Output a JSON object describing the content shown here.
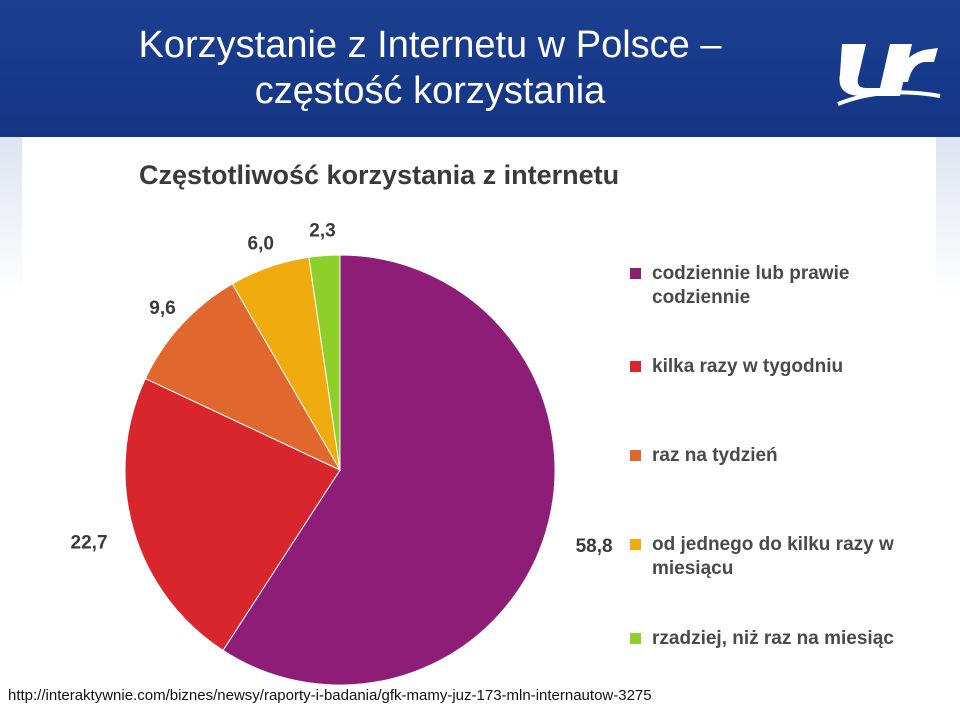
{
  "slide": {
    "title_line1": "Korzystanie z Internetu w Polsce –",
    "title_line2": "częstość korzystania",
    "source_url": "http://interaktywnie.com/biznes/newsy/raporty-i-badania/gfk-mamy-juz-173-mln-internautow-3275"
  },
  "chart_data": {
    "type": "pie",
    "title": "Częstotliwość korzystania z internetu",
    "categories": [
      "codziennie lub prawie codziennie",
      "kilka razy w tygodniu",
      "raz na tydzień",
      "od jednego do kilku razy w miesiącu",
      "rzadziej, niż raz na miesiąc"
    ],
    "values": [
      58.8,
      22.7,
      9.6,
      6.0,
      2.3
    ],
    "value_labels": [
      "58,8",
      "22,7",
      "9,6",
      "6,0",
      "2,3"
    ],
    "colors": [
      "#8e1d78",
      "#d8262c",
      "#e0672e",
      "#f0ac0f",
      "#8fcf2a"
    ],
    "legend_position": "right"
  }
}
